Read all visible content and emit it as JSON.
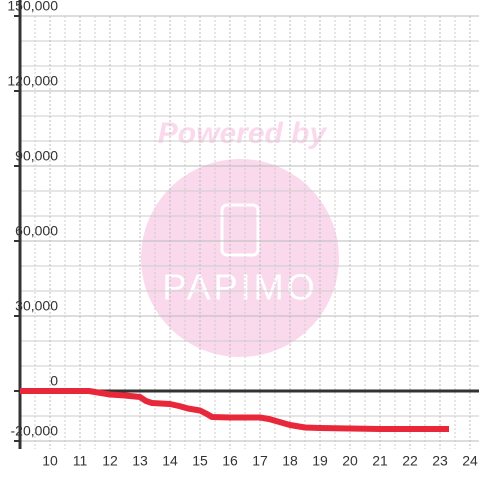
{
  "chart_data": {
    "type": "line",
    "watermark": [
      "Powered by",
      "PAPIMO"
    ],
    "x": [
      9,
      11.3,
      11.7,
      12,
      12.5,
      13,
      13.2,
      13.4,
      14,
      14.3,
      14.6,
      15,
      15.2,
      15.4,
      16,
      17,
      17.3,
      18,
      18.5,
      19,
      20,
      21,
      22,
      23.3
    ],
    "series": [
      {
        "name": null,
        "color": "#e8273a",
        "values": [
          0,
          0,
          -800,
          -1400,
          -1800,
          -2400,
          -4000,
          -4800,
          -5200,
          -6000,
          -7000,
          -7800,
          -9000,
          -10400,
          -10600,
          -10600,
          -11200,
          -13600,
          -14600,
          -14800,
          -15000,
          -15200,
          -15200,
          -15200
        ]
      }
    ],
    "xlim": [
      9,
      24.3
    ],
    "ylim": [
      -20000,
      150000
    ],
    "xticks": [
      10,
      11,
      12,
      13,
      14,
      15,
      16,
      17,
      18,
      19,
      20,
      21,
      22,
      23,
      24
    ],
    "x_minor_ticks": [
      9.5,
      10.5,
      11.5,
      12.5,
      13.5,
      14.5,
      15.5,
      16.5,
      17.5,
      18.5,
      19.5,
      20.5,
      21.5,
      22.5,
      23.5
    ],
    "yticks": [
      {
        "value": -20000,
        "label": "-20,000"
      },
      0,
      {
        "value": 30000,
        "label": "30,000"
      },
      {
        "value": 60000,
        "label": "60,000"
      },
      {
        "value": 90000,
        "label": "90,000"
      },
      {
        "value": 120000,
        "label": "120,000"
      },
      {
        "value": 150000,
        "label": "150,000"
      }
    ],
    "y_minor_ticks": [
      -10000,
      10000,
      20000,
      40000,
      50000,
      70000,
      80000,
      100000,
      110000,
      130000,
      140000
    ],
    "grid": true
  }
}
